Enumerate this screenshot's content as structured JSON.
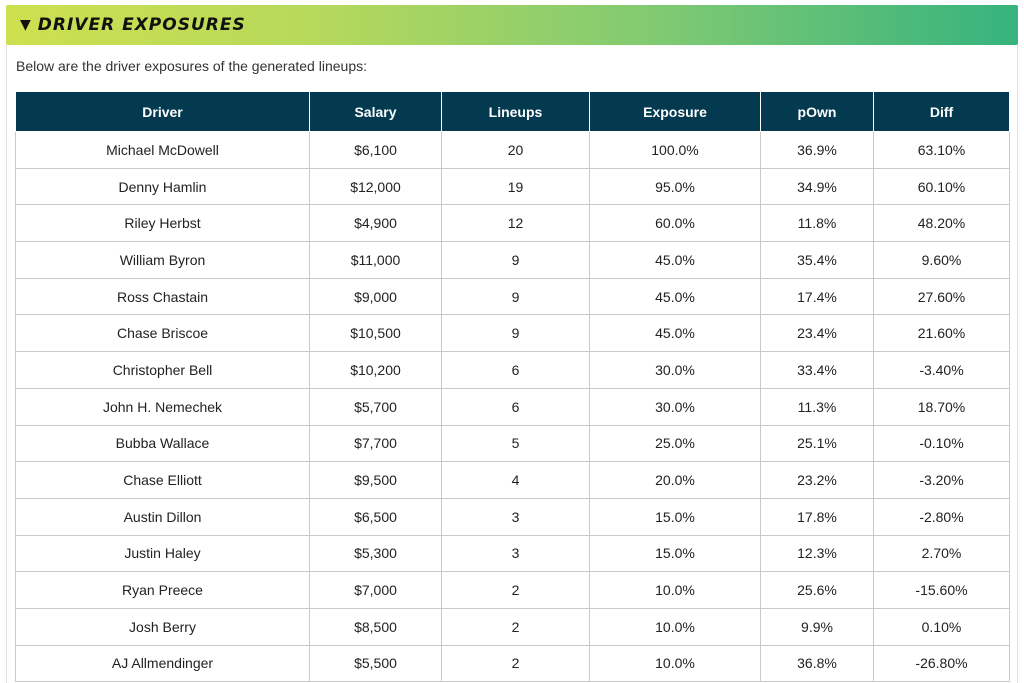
{
  "section": {
    "title": "DRIVER EXPOSURES",
    "toggle_glyph": "▼",
    "intro": "Below are the driver exposures of the generated lineups:"
  },
  "colors": {
    "header_gradient_start": "#cde04f",
    "header_gradient_end": "#36b37e",
    "table_header": "#033a4f"
  },
  "table": {
    "columns": [
      "Driver",
      "Salary",
      "Lineups",
      "Exposure",
      "pOwn",
      "Diff"
    ],
    "rows": [
      [
        "Michael McDowell",
        "$6,100",
        "20",
        "100.0%",
        "36.9%",
        "63.10%"
      ],
      [
        "Denny Hamlin",
        "$12,000",
        "19",
        "95.0%",
        "34.9%",
        "60.10%"
      ],
      [
        "Riley Herbst",
        "$4,900",
        "12",
        "60.0%",
        "11.8%",
        "48.20%"
      ],
      [
        "William Byron",
        "$11,000",
        "9",
        "45.0%",
        "35.4%",
        "9.60%"
      ],
      [
        "Ross Chastain",
        "$9,000",
        "9",
        "45.0%",
        "17.4%",
        "27.60%"
      ],
      [
        "Chase Briscoe",
        "$10,500",
        "9",
        "45.0%",
        "23.4%",
        "21.60%"
      ],
      [
        "Christopher Bell",
        "$10,200",
        "6",
        "30.0%",
        "33.4%",
        "-3.40%"
      ],
      [
        "John H. Nemechek",
        "$5,700",
        "6",
        "30.0%",
        "11.3%",
        "18.70%"
      ],
      [
        "Bubba Wallace",
        "$7,700",
        "5",
        "25.0%",
        "25.1%",
        "-0.10%"
      ],
      [
        "Chase Elliott",
        "$9,500",
        "4",
        "20.0%",
        "23.2%",
        "-3.20%"
      ],
      [
        "Austin Dillon",
        "$6,500",
        "3",
        "15.0%",
        "17.8%",
        "-2.80%"
      ],
      [
        "Justin Haley",
        "$5,300",
        "3",
        "15.0%",
        "12.3%",
        "2.70%"
      ],
      [
        "Ryan Preece",
        "$7,000",
        "2",
        "10.0%",
        "25.6%",
        "-15.60%"
      ],
      [
        "Josh Berry",
        "$8,500",
        "2",
        "10.0%",
        "9.9%",
        "0.10%"
      ],
      [
        "AJ Allmendinger",
        "$5,500",
        "2",
        "10.0%",
        "36.8%",
        "-26.80%"
      ]
    ]
  }
}
